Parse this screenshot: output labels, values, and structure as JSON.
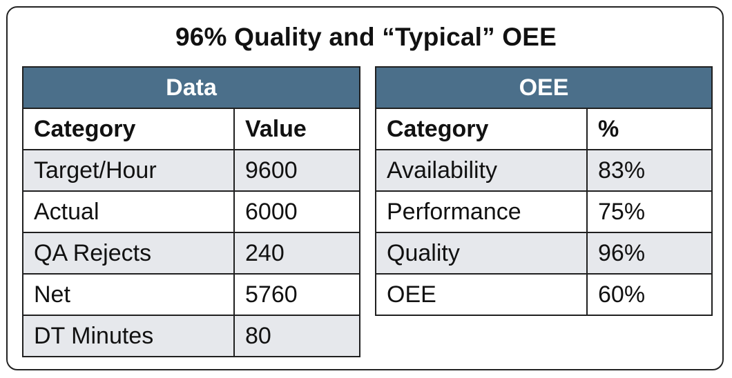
{
  "title": "96% Quality and “Typical” OEE",
  "data_table": {
    "banner": "Data",
    "headers": [
      "Category",
      "Value"
    ],
    "rows": [
      [
        "Target/Hour",
        "9600"
      ],
      [
        "Actual",
        "6000"
      ],
      [
        "QA Rejects",
        "240"
      ],
      [
        "Net",
        "5760"
      ],
      [
        "DT Minutes",
        "80"
      ]
    ]
  },
  "oee_table": {
    "banner": "OEE",
    "headers": [
      "Category",
      "%"
    ],
    "rows": [
      [
        "Availability",
        "83%"
      ],
      [
        "Performance",
        "75%"
      ],
      [
        "Quality",
        "96%"
      ],
      [
        "OEE",
        "60%"
      ]
    ]
  },
  "colors": {
    "banner": "#4b6f8a",
    "alt_row": "#e6e8ec",
    "border": "#1f1f1f"
  }
}
